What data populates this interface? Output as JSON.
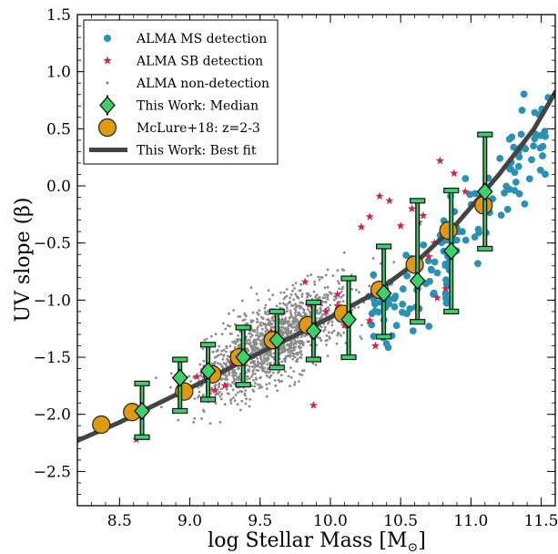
{
  "chart_data": {
    "type": "scatter",
    "title": "",
    "xlabel": "log Stellar Mass [M",
    "xlabel_sub": "⊙",
    "xlabel_end": "]",
    "ylabel": "UV slope (β)",
    "xlim": [
      8.2,
      11.6
    ],
    "ylim": [
      -2.8,
      1.5
    ],
    "xticks": [
      "8.5",
      "9.0",
      "9.5",
      "10.0",
      "10.5",
      "11.0",
      "11.5"
    ],
    "yticks": [
      "1.5",
      "1.0",
      "0.5",
      "0.0",
      "−0.5",
      "−1.0",
      "−1.5",
      "−2.0",
      "−2.5"
    ],
    "legend_position": "top-left",
    "legend": [
      {
        "label": "ALMA MS detection",
        "marker": "dot",
        "color": "#2a91b4"
      },
      {
        "label": "ALMA SB detection",
        "marker": "star",
        "color": "#d0234f"
      },
      {
        "label": "ALMA non-detection",
        "marker": "small-dot",
        "color": "#8c8c8c"
      },
      {
        "label": "This Work: Median",
        "marker": "diamond",
        "color": "#3dd06b"
      },
      {
        "label": "McLure+18: z=2-3",
        "marker": "circle",
        "color": "#e09a10"
      },
      {
        "label": "This Work: Best fit",
        "marker": "line",
        "color": "#444444"
      }
    ],
    "series": [
      {
        "name": "This Work: Median",
        "x": [
          8.66,
          8.93,
          9.13,
          9.38,
          9.62,
          9.88,
          10.13,
          10.38,
          10.62,
          10.86,
          11.1
        ],
        "y": [
          -1.97,
          -1.68,
          -1.62,
          -1.5,
          -1.35,
          -1.27,
          -1.17,
          -0.94,
          -0.83,
          -0.57,
          -0.05
        ],
        "y_upper": [
          -1.73,
          -1.52,
          -1.39,
          -1.24,
          -1.1,
          -1.02,
          -0.81,
          -0.53,
          -0.13,
          -0.04,
          0.45
        ],
        "y_lower": [
          -2.2,
          -1.97,
          -1.87,
          -1.74,
          -1.59,
          -1.52,
          -1.5,
          -1.32,
          -1.19,
          -1.1,
          -0.55
        ]
      },
      {
        "name": "McLure+18: z=2-3",
        "x": [
          8.37,
          8.59,
          8.96,
          9.16,
          9.35,
          9.59,
          9.84,
          10.09,
          10.35,
          10.6,
          10.84,
          11.09
        ],
        "y": [
          -2.09,
          -1.98,
          -1.8,
          -1.65,
          -1.5,
          -1.35,
          -1.22,
          -1.12,
          -0.91,
          -0.69,
          -0.39,
          -0.17
        ]
      },
      {
        "name": "This Work: Best fit",
        "x": [
          8.2,
          8.5,
          8.8,
          9.1,
          9.4,
          9.7,
          10.0,
          10.3,
          10.6,
          10.9,
          11.2,
          11.45,
          11.6
        ],
        "y": [
          -2.23,
          -2.07,
          -1.89,
          -1.71,
          -1.52,
          -1.34,
          -1.15,
          -0.95,
          -0.68,
          -0.33,
          0.1,
          0.5,
          0.82
        ]
      },
      {
        "name": "ALMA SB detection",
        "x": [
          8.62,
          9.05,
          9.1,
          9.18,
          9.25,
          9.4,
          9.55,
          9.58,
          9.62,
          9.82,
          9.85,
          9.88,
          9.97,
          10.05,
          10.15,
          10.22,
          10.28,
          10.32,
          10.35,
          10.42,
          10.5,
          10.58,
          10.63,
          10.66,
          10.7,
          10.74,
          10.76,
          10.78,
          10.82,
          10.88,
          10.96,
          10.28,
          10.05,
          9.3,
          10.1
        ],
        "y": [
          -2.22,
          -1.67,
          -1.61,
          -1.79,
          -1.75,
          -1.51,
          -1.34,
          -1.28,
          -1.31,
          -0.84,
          -1.04,
          -1.92,
          -1.1,
          -0.95,
          -0.8,
          -0.36,
          -0.27,
          -1.4,
          -0.09,
          -0.13,
          -0.35,
          -0.2,
          -0.32,
          -0.26,
          -0.62,
          -0.5,
          -0.98,
          0.22,
          -0.9,
          0.11,
          -0.05,
          -1.18,
          -1.05,
          -1.55,
          -1.22
        ]
      }
    ],
    "ms_detection_count": 140,
    "non_detection_count": 1400,
    "scatter_seed": 7
  }
}
